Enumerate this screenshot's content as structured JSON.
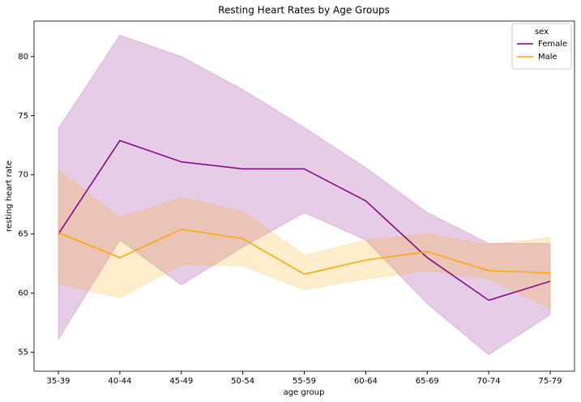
{
  "chart_data": {
    "type": "line",
    "title": "Resting Heart Rates by Age Groups",
    "xlabel": "age group",
    "ylabel": "resting heart rate",
    "categories": [
      "35-39",
      "40-44",
      "45-49",
      "50-54",
      "55-59",
      "60-64",
      "65-69",
      "70-74",
      "75-79"
    ],
    "series": [
      {
        "name": "Female",
        "color": "#800080",
        "values": [
          65.0,
          72.9,
          71.1,
          70.5,
          70.5,
          67.8,
          63.0,
          59.4,
          61.0
        ],
        "upper": [
          73.9,
          81.8,
          80.0,
          77.2,
          74.0,
          70.6,
          66.8,
          64.2,
          64.2
        ],
        "lower": [
          56.1,
          64.5,
          60.7,
          63.9,
          66.8,
          64.5,
          59.1,
          54.8,
          58.2
        ]
      },
      {
        "name": "Male",
        "color": "#ffa500",
        "values": [
          65.1,
          63.0,
          65.4,
          64.6,
          61.6,
          62.8,
          63.5,
          61.9,
          61.7
        ],
        "upper": [
          70.4,
          66.4,
          68.1,
          66.9,
          63.2,
          64.5,
          65.0,
          64.1,
          64.7
        ],
        "lower": [
          60.8,
          59.6,
          62.4,
          62.3,
          60.3,
          61.2,
          61.9,
          61.2,
          58.7
        ]
      }
    ],
    "legend_title": "sex",
    "legend": "upper right",
    "ylim": [
      53.4,
      83.0
    ],
    "yticks": [
      55,
      60,
      65,
      70,
      75,
      80
    ],
    "grid": false
  }
}
